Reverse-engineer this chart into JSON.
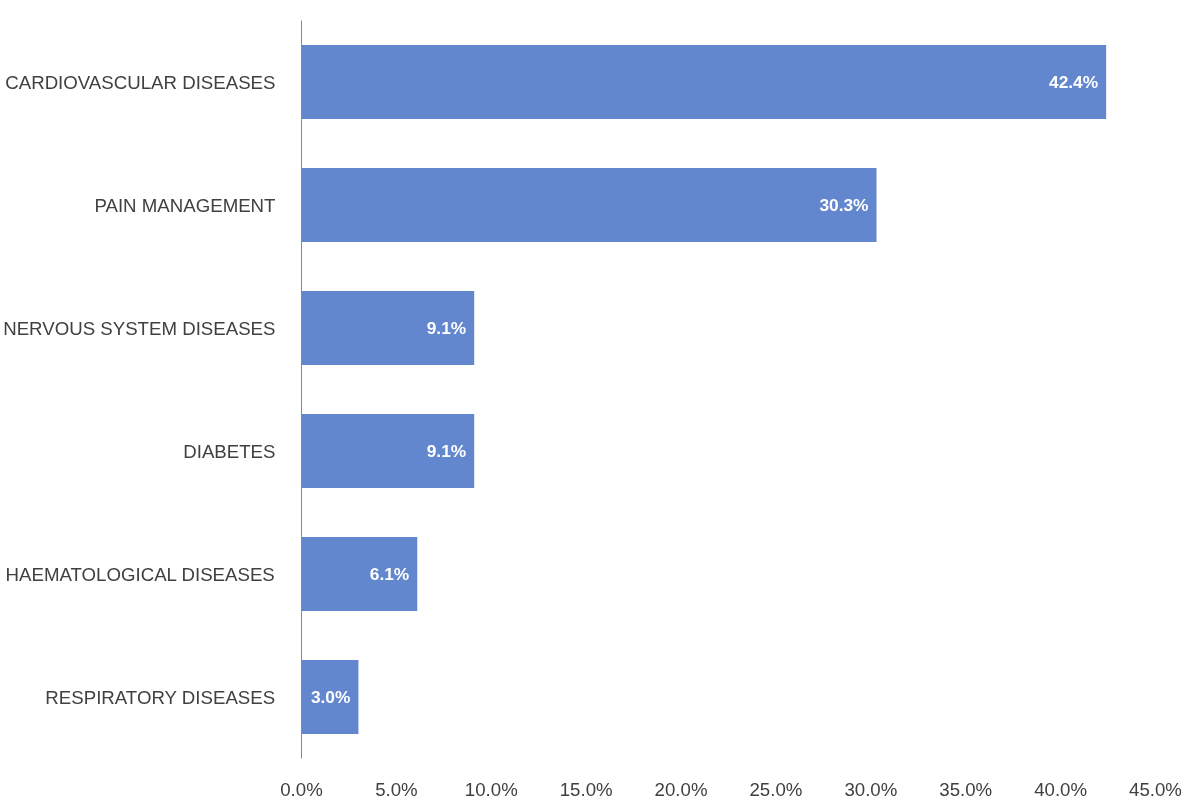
{
  "chart_data": {
    "type": "bar",
    "orientation": "horizontal",
    "categories": [
      "CARDIOVASCULAR DISEASES",
      "PAIN MANAGEMENT",
      "NERVOUS SYSTEM DISEASES",
      "DIABETES",
      "HAEMATOLOGICAL DISEASES",
      "RESPIRATORY DISEASES"
    ],
    "values": [
      42.4,
      30.3,
      9.1,
      9.1,
      6.1,
      3.0
    ],
    "value_labels": [
      "42.4%",
      "30.3%",
      "9.1%",
      "9.1%",
      "6.1%",
      "3.0%"
    ],
    "color": "#6287cf",
    "xlim": [
      0,
      45
    ],
    "xticks": [
      {
        "value": 0,
        "label": "0.0%"
      },
      {
        "value": 5,
        "label": "5.0%"
      },
      {
        "value": 10,
        "label": "10.0%"
      },
      {
        "value": 15,
        "label": "15.0%"
      },
      {
        "value": 20,
        "label": "20.0%"
      },
      {
        "value": 25,
        "label": "25.0%"
      },
      {
        "value": 30,
        "label": "30.0%"
      },
      {
        "value": 35,
        "label": "35.0%"
      },
      {
        "value": 40,
        "label": "40.0%"
      },
      {
        "value": 45,
        "label": "45.0%"
      }
    ],
    "grid": false
  }
}
